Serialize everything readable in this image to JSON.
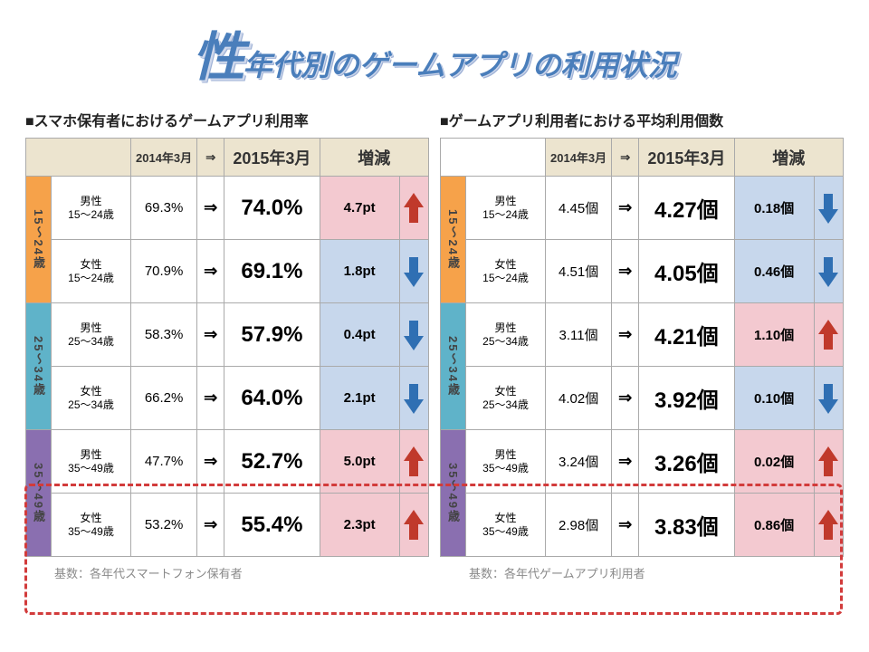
{
  "title_big": "性",
  "title_rest": "年代別のゲームアプリの利用状況",
  "colors": {
    "title_color": "#4a7ebb",
    "header_bg": "#ece4cf",
    "age_band_a": "#f6a24a",
    "age_band_b": "#5fb3c9",
    "age_band_c": "#8a6fb0",
    "up_bg": "#f3c9d0",
    "down_bg": "#c7d7ec",
    "up_arrow": "#c0392b",
    "down_arrow": "#2f6fb3",
    "highlight": "#d23b3b"
  },
  "headers": {
    "h_2014": "2014年3月",
    "h_arrow": "⇒",
    "h_2015": "2015年3月",
    "h_change": "増減"
  },
  "age_bands": {
    "a": "15〜24歳",
    "b": "25〜34歳",
    "c": "35〜49歳"
  },
  "segments": {
    "m15": "男性\n15〜24歳",
    "f15": "女性\n15〜24歳",
    "m25": "男性\n25〜34歳",
    "f25": "女性\n25〜34歳",
    "m35": "男性\n35〜49歳",
    "f35": "女性\n35〜49歳"
  },
  "left": {
    "subtitle": "■スマホ保有者におけるゲームアプリ利用率",
    "corner_style": "beige",
    "rows": {
      "m15": {
        "v1": "69.3%",
        "v2": "74.0%",
        "chg": "4.7pt",
        "dir": "up"
      },
      "f15": {
        "v1": "70.9%",
        "v2": "69.1%",
        "chg": "1.8pt",
        "dir": "down"
      },
      "m25": {
        "v1": "58.3%",
        "v2": "57.9%",
        "chg": "0.4pt",
        "dir": "down"
      },
      "f25": {
        "v1": "66.2%",
        "v2": "64.0%",
        "chg": "2.1pt",
        "dir": "down"
      },
      "m35": {
        "v1": "47.7%",
        "v2": "52.7%",
        "chg": "5.0pt",
        "dir": "up"
      },
      "f35": {
        "v1": "53.2%",
        "v2": "55.4%",
        "chg": "2.3pt",
        "dir": "up"
      }
    },
    "footnote": "基数：各年代スマートフォン保有者"
  },
  "right": {
    "subtitle": "■ゲームアプリ利用者における平均利用個数",
    "corner_style": "white",
    "rows": {
      "m15": {
        "v1": "4.45個",
        "v2": "4.27個",
        "chg": "0.18個",
        "dir": "down"
      },
      "f15": {
        "v1": "4.51個",
        "v2": "4.05個",
        "chg": "0.46個",
        "dir": "down"
      },
      "m25": {
        "v1": "3.11個",
        "v2": "4.21個",
        "chg": "1.10個",
        "dir": "up"
      },
      "f25": {
        "v1": "4.02個",
        "v2": "3.92個",
        "chg": "0.10個",
        "dir": "down"
      },
      "m35": {
        "v1": "3.24個",
        "v2": "3.26個",
        "chg": "0.02個",
        "dir": "up"
      },
      "f35": {
        "v1": "2.98個",
        "v2": "3.83個",
        "chg": "0.86個",
        "dir": "up"
      }
    },
    "footnote": "基数：各年代ゲームアプリ利用者"
  }
}
